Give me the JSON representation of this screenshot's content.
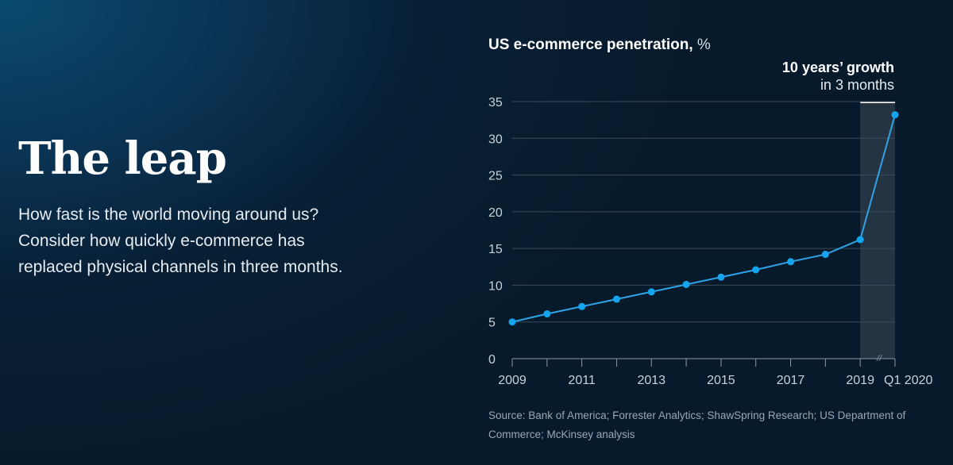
{
  "page": {
    "headline": "The leap",
    "lede": "How fast is the world moving around us? Consider how quickly e-commerce has replaced physical channels in three months."
  },
  "chart": {
    "title_bold": "US e-commerce penetration,",
    "title_unit": "%",
    "annotation_line1": "10 years’ growth",
    "annotation_line2": "in 3 months",
    "source": "Source: Bank of America; Forrester Analytics; ShawSpring Research; US Department of Commerce; McKinsey analysis",
    "axis_break_glyph": "//"
  },
  "colors": {
    "line": "#2ea3e6",
    "point": "#14a5f0",
    "grid": "#3b4a58",
    "highlight_band": "#2a3a48",
    "highlight_bar": "#ffffff",
    "tick_text": "#c9d1d8"
  },
  "chart_data": {
    "type": "line",
    "title": "US e-commerce penetration, %",
    "xlabel": "",
    "ylabel": "",
    "x": [
      "2009",
      "2010",
      "2011",
      "2012",
      "2013",
      "2014",
      "2015",
      "2016",
      "2017",
      "2018",
      "2019",
      "Q1 2020"
    ],
    "x_tick_labels": [
      "2009",
      "2011",
      "2013",
      "2015",
      "2017",
      "2019",
      "Q1 2020"
    ],
    "series": [
      {
        "name": "US e-commerce penetration",
        "values": [
          5.0,
          6.1,
          7.1,
          8.1,
          9.1,
          10.1,
          11.1,
          12.1,
          13.2,
          14.2,
          16.2,
          33.2
        ]
      }
    ],
    "ylim": [
      0,
      35
    ],
    "y_ticks": [
      0,
      5,
      10,
      15,
      20,
      25,
      30,
      35
    ],
    "grid": true,
    "highlight": {
      "from": "2019",
      "to": "Q1 2020",
      "label": "10 years’ growth in 3 months"
    },
    "axis_break": "between 2019 and Q1 2020"
  }
}
